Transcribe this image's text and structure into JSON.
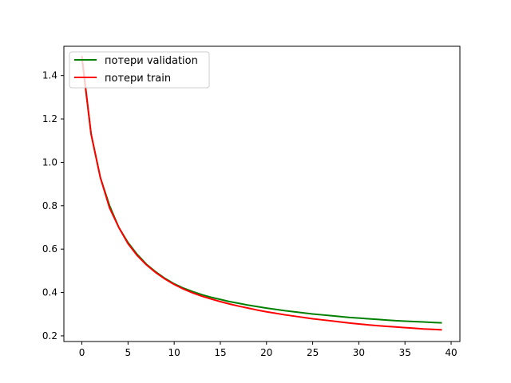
{
  "chart_data": {
    "type": "line",
    "title": "",
    "xlabel": "",
    "ylabel": "",
    "xlim": [
      -1.95,
      40.95
    ],
    "ylim": [
      0.174,
      1.535
    ],
    "x_ticks": [
      0,
      5,
      10,
      15,
      20,
      25,
      30,
      35,
      40
    ],
    "y_ticks": [
      0.2,
      0.4,
      0.6,
      0.8,
      1.0,
      1.2,
      1.4
    ],
    "grid": false,
    "legend_position": "upper-left",
    "series": [
      {
        "name": "потери validation",
        "color": "#008000",
        "x": [
          0,
          1,
          2,
          3,
          4,
          5,
          6,
          7,
          8,
          9,
          10,
          11,
          12,
          13,
          14,
          15,
          16,
          17,
          18,
          19,
          20,
          21,
          22,
          23,
          24,
          25,
          26,
          27,
          28,
          29,
          30,
          31,
          32,
          33,
          34,
          35,
          36,
          37,
          38,
          39
        ],
        "values": [
          1.48,
          1.13,
          0.93,
          0.8,
          0.7,
          0.63,
          0.575,
          0.53,
          0.495,
          0.465,
          0.44,
          0.42,
          0.404,
          0.39,
          0.378,
          0.368,
          0.358,
          0.35,
          0.342,
          0.335,
          0.328,
          0.322,
          0.316,
          0.311,
          0.306,
          0.301,
          0.297,
          0.293,
          0.289,
          0.285,
          0.282,
          0.279,
          0.276,
          0.273,
          0.27,
          0.268,
          0.266,
          0.264,
          0.262,
          0.26
        ]
      },
      {
        "name": "потери train",
        "color": "#ff0000",
        "x": [
          0,
          1,
          2,
          3,
          4,
          5,
          6,
          7,
          8,
          9,
          10,
          11,
          12,
          13,
          14,
          15,
          16,
          17,
          18,
          19,
          20,
          21,
          22,
          23,
          24,
          25,
          26,
          27,
          28,
          29,
          30,
          31,
          32,
          33,
          34,
          35,
          36,
          37,
          38,
          39
        ],
        "values": [
          1.49,
          1.13,
          0.93,
          0.79,
          0.7,
          0.625,
          0.57,
          0.527,
          0.492,
          0.462,
          0.437,
          0.416,
          0.398,
          0.383,
          0.37,
          0.358,
          0.347,
          0.337,
          0.328,
          0.319,
          0.311,
          0.304,
          0.297,
          0.291,
          0.285,
          0.279,
          0.274,
          0.269,
          0.264,
          0.259,
          0.255,
          0.251,
          0.247,
          0.244,
          0.241,
          0.238,
          0.235,
          0.232,
          0.23,
          0.228
        ]
      }
    ]
  }
}
